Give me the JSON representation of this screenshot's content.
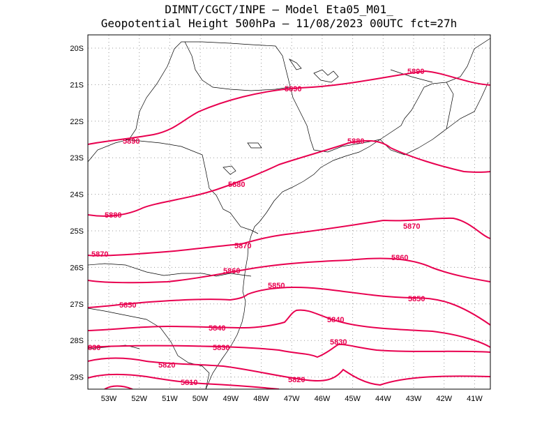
{
  "title_line1": "DIMNT/CGCT/INPE –  Model Eta05_M01_",
  "title_line2": "Geopotential Height 500hPa –  11/08/2023 00UTC fct=27h",
  "colors": {
    "contour": "#e8004f",
    "coast": "#000000",
    "grid": "#9a9a9a"
  },
  "axes": {
    "lon_labels": [
      "53W",
      "52W",
      "51W",
      "50W",
      "49W",
      "48W",
      "47W",
      "46W",
      "45W",
      "44W",
      "43W",
      "42W",
      "41W"
    ],
    "lat_labels": [
      "20S",
      "21S",
      "22S",
      "23S",
      "24S",
      "25S",
      "26S",
      "27S",
      "28S",
      "29S"
    ]
  },
  "contour_labels": [
    {
      "text": "5890"
    },
    {
      "text": "5890"
    },
    {
      "text": "5890"
    },
    {
      "text": "5880"
    },
    {
      "text": "5880"
    },
    {
      "text": "5880"
    },
    {
      "text": "5870"
    },
    {
      "text": "5870"
    },
    {
      "text": "5870"
    },
    {
      "text": "5860"
    },
    {
      "text": "5860"
    },
    {
      "text": "5850"
    },
    {
      "text": "5850"
    },
    {
      "text": "5850"
    },
    {
      "text": "5840"
    },
    {
      "text": "5840"
    },
    {
      "text": "5830"
    },
    {
      "text": "5830"
    },
    {
      "text": "830"
    },
    {
      "text": "5820"
    },
    {
      "text": "5820"
    },
    {
      "text": "5810"
    }
  ]
}
